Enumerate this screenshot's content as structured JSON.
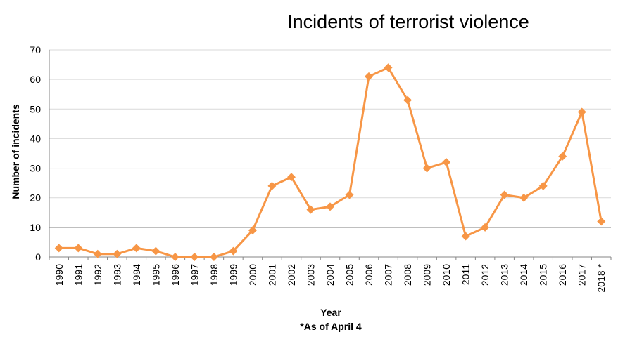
{
  "chart_data": {
    "type": "line",
    "title": "Incidents of terrorist violence",
    "xlabel": "Year",
    "xlabel_note": "*As of April 4",
    "ylabel": "Number of incidents",
    "categories": [
      "1990",
      "1991",
      "1992",
      "1993",
      "1994",
      "1995",
      "1996",
      "1997",
      "1998",
      "1999",
      "2000",
      "2001",
      "2002",
      "2003",
      "2004",
      "2005",
      "2006",
      "2007",
      "2008",
      "2009",
      "2010",
      "2011",
      "2012",
      "2013",
      "2014",
      "2015",
      "2016",
      "2017",
      "2018 *"
    ],
    "series": [
      {
        "values": [
          3,
          3,
          1,
          1,
          3,
          2,
          0,
          0,
          0,
          2,
          9,
          24,
          27,
          16,
          17,
          21,
          61,
          64,
          53,
          30,
          32,
          7,
          10,
          21,
          20,
          24,
          34,
          49,
          12
        ],
        "color": "#F79646"
      }
    ],
    "ylim": [
      0,
      70
    ],
    "yticks": [
      0,
      10,
      20,
      30,
      40,
      50,
      60,
      70
    ],
    "grid": "horizontal",
    "highlight_line": 10,
    "legend": "none",
    "marker": "diamond"
  }
}
